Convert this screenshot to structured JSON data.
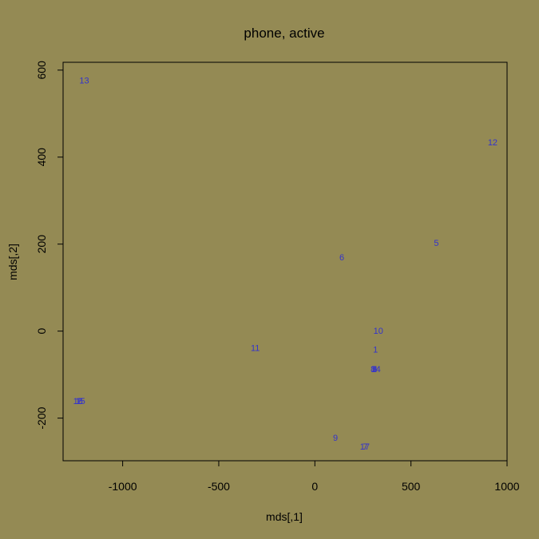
{
  "chart_data": {
    "type": "scatter",
    "title": "phone, active",
    "xlabel": "mds[,1]",
    "ylabel": "mds[,2]",
    "xlim": [
      -1310,
      1000
    ],
    "ylim": [
      -298,
      618
    ],
    "x_ticks": [
      -1000,
      -500,
      0,
      500,
      1000
    ],
    "y_ticks": [
      -200,
      0,
      200,
      400,
      600
    ],
    "grid": false,
    "point_style": "text-labels",
    "colors": {
      "background": "#948A54",
      "axis": "#000000",
      "points": "#3333CC"
    },
    "points": [
      {
        "label": "1",
        "x": 315,
        "y": -42
      },
      {
        "label": "2",
        "x": -1225,
        "y": -160
      },
      {
        "label": "3",
        "x": 310,
        "y": -87
      },
      {
        "label": "4",
        "x": 313,
        "y": -87
      },
      {
        "label": "5",
        "x": 632,
        "y": 203
      },
      {
        "label": "6",
        "x": 140,
        "y": 170
      },
      {
        "label": "7",
        "x": 263,
        "y": -265
      },
      {
        "label": "8",
        "x": 303,
        "y": -87
      },
      {
        "label": "9",
        "x": 107,
        "y": -245
      },
      {
        "label": "10",
        "x": 330,
        "y": 1
      },
      {
        "label": "11",
        "x": -310,
        "y": -38
      },
      {
        "label": "12",
        "x": 925,
        "y": 434
      },
      {
        "label": "13",
        "x": -1200,
        "y": 577
      },
      {
        "label": "14",
        "x": 317,
        "y": -87
      },
      {
        "label": "15",
        "x": -1220,
        "y": -160
      },
      {
        "label": "16",
        "x": -1232,
        "y": -160
      },
      {
        "label": "17",
        "x": 260,
        "y": -265
      }
    ]
  }
}
